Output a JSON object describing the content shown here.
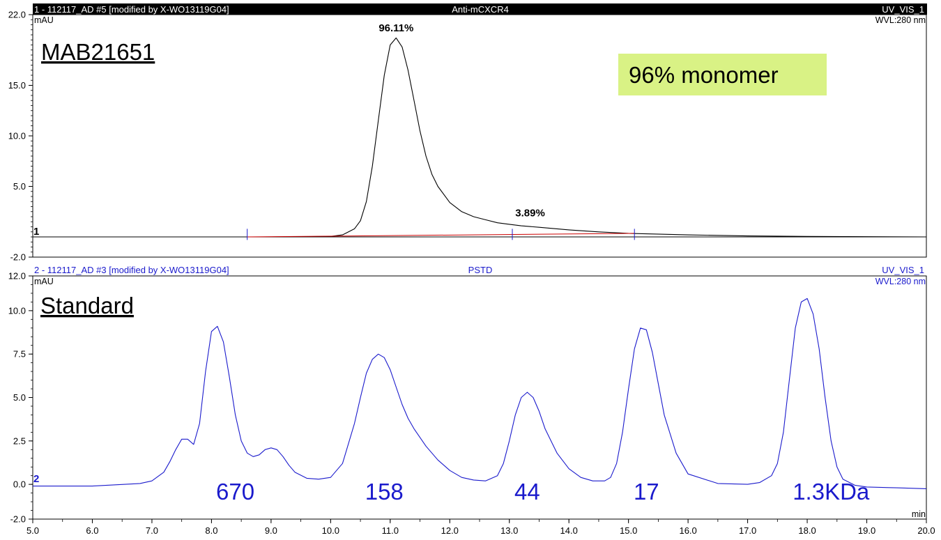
{
  "chart_data": [
    {
      "type": "line",
      "header": {
        "left": "1 - 112117_AD #5 [modified by X-WO13119G04]",
        "center": "Anti-mCXCR4",
        "right": "UV_VIS_1"
      },
      "ylabel": "mAU",
      "wavelength": "WVL:280 nm",
      "trace_number": "1",
      "sample_label": "MAB21651",
      "annotation_box": "96% monomer",
      "annotation_box_color": "#d9f285",
      "ylim": [
        -2.0,
        22.0
      ],
      "yticks": [
        "22.0",
        "15.0",
        "10.0",
        "5.0",
        "-2.0"
      ],
      "ytick_values": [
        22.0,
        15.0,
        10.0,
        5.0,
        -2.0
      ],
      "xlim": [
        5.0,
        20.0
      ],
      "line_color": "#000000",
      "baseline_color": "#cc0000",
      "peak_labels": [
        {
          "text": "96.11%",
          "x": 11.1,
          "y": 19.8
        },
        {
          "text": "3.89%",
          "x": 13.1,
          "y": 1.5
        }
      ],
      "integration_marks": [
        8.6,
        13.05,
        15.1
      ],
      "x": [
        5.0,
        8.0,
        9.0,
        10.0,
        10.2,
        10.4,
        10.5,
        10.6,
        10.7,
        10.8,
        10.9,
        11.0,
        11.1,
        11.2,
        11.3,
        11.4,
        11.5,
        11.6,
        11.7,
        11.8,
        12.0,
        12.2,
        12.4,
        12.6,
        12.8,
        13.0,
        13.2,
        13.5,
        14.0,
        14.5,
        15.0,
        16.0,
        17.0,
        18.0,
        19.0,
        20.0
      ],
      "y": [
        0.0,
        0.0,
        0.0,
        0.05,
        0.2,
        0.8,
        1.6,
        3.5,
        7.0,
        11.5,
        16.0,
        19.0,
        19.7,
        18.8,
        16.5,
        13.5,
        10.5,
        8.0,
        6.2,
        5.0,
        3.4,
        2.5,
        2.0,
        1.7,
        1.4,
        1.25,
        1.1,
        0.95,
        0.7,
        0.5,
        0.35,
        0.2,
        0.1,
        0.05,
        0.02,
        0.0
      ]
    },
    {
      "type": "line",
      "header": {
        "left": "2 - 112117_AD #3 [modified by X-WO13119G04]",
        "center": "PSTD",
        "right": "UV_VIS_1"
      },
      "ylabel": "mAU",
      "wavelength": "WVL:280 nm",
      "trace_number": "2",
      "sample_label": "Standard",
      "ylim": [
        -2.0,
        12.0
      ],
      "yticks": [
        "12.0",
        "10.0",
        "7.5",
        "5.0",
        "2.5",
        "0.0",
        "-2.0"
      ],
      "ytick_values": [
        12.0,
        10.0,
        7.5,
        5.0,
        2.5,
        0.0,
        -2.0
      ],
      "xlim": [
        5.0,
        20.0
      ],
      "xlabel": "min",
      "xticks": [
        "5.0",
        "6.0",
        "7.0",
        "8.0",
        "9.0",
        "10.0",
        "11.0",
        "12.0",
        "13.0",
        "14.0",
        "15.0",
        "16.0",
        "17.0",
        "18.0",
        "19.0",
        "20.0"
      ],
      "xtick_values": [
        5.0,
        6.0,
        7.0,
        8.0,
        9.0,
        10.0,
        11.0,
        12.0,
        13.0,
        14.0,
        15.0,
        16.0,
        17.0,
        18.0,
        19.0,
        20.0
      ],
      "line_color": "#1a1acc",
      "size_labels": [
        {
          "text": "670",
          "x": 8.4
        },
        {
          "text": "158",
          "x": 10.9
        },
        {
          "text": "44",
          "x": 13.3
        },
        {
          "text": "17",
          "x": 15.3
        },
        {
          "text": "1.3KDa",
          "x": 18.4
        }
      ],
      "label_color": "#1a1acc",
      "x": [
        5.0,
        6.0,
        6.8,
        7.0,
        7.2,
        7.3,
        7.4,
        7.5,
        7.6,
        7.7,
        7.8,
        7.9,
        8.0,
        8.1,
        8.2,
        8.3,
        8.4,
        8.5,
        8.6,
        8.7,
        8.8,
        8.9,
        9.0,
        9.1,
        9.2,
        9.3,
        9.4,
        9.6,
        9.8,
        10.0,
        10.2,
        10.4,
        10.5,
        10.6,
        10.7,
        10.8,
        10.9,
        11.0,
        11.1,
        11.2,
        11.3,
        11.4,
        11.6,
        11.8,
        12.0,
        12.2,
        12.4,
        12.6,
        12.8,
        12.9,
        13.0,
        13.1,
        13.2,
        13.3,
        13.4,
        13.5,
        13.6,
        13.8,
        14.0,
        14.2,
        14.4,
        14.6,
        14.7,
        14.8,
        14.9,
        15.0,
        15.1,
        15.2,
        15.3,
        15.4,
        15.5,
        15.6,
        15.8,
        16.0,
        16.5,
        17.0,
        17.2,
        17.4,
        17.5,
        17.6,
        17.7,
        17.8,
        17.9,
        18.0,
        18.1,
        18.2,
        18.3,
        18.4,
        18.5,
        18.6,
        18.8,
        19.0,
        19.5,
        20.0
      ],
      "y": [
        -0.1,
        -0.1,
        0.05,
        0.2,
        0.7,
        1.3,
        2.0,
        2.6,
        2.6,
        2.3,
        3.5,
        6.5,
        8.8,
        9.1,
        8.2,
        6.2,
        4.0,
        2.5,
        1.8,
        1.6,
        1.7,
        2.0,
        2.1,
        2.0,
        1.6,
        1.1,
        0.7,
        0.35,
        0.3,
        0.4,
        1.2,
        3.5,
        5.0,
        6.4,
        7.2,
        7.5,
        7.3,
        6.6,
        5.6,
        4.6,
        3.8,
        3.2,
        2.2,
        1.4,
        0.8,
        0.4,
        0.25,
        0.2,
        0.5,
        1.2,
        2.5,
        4.0,
        5.0,
        5.3,
        5.0,
        4.2,
        3.2,
        1.8,
        0.9,
        0.4,
        0.2,
        0.2,
        0.4,
        1.2,
        3.0,
        5.5,
        7.8,
        9.0,
        8.9,
        7.6,
        5.8,
        4.0,
        1.8,
        0.6,
        0.05,
        0.0,
        0.1,
        0.5,
        1.2,
        3.0,
        6.0,
        9.0,
        10.5,
        10.7,
        9.8,
        7.8,
        5.0,
        2.5,
        1.0,
        0.3,
        -0.05,
        -0.15,
        -0.2,
        -0.25
      ]
    }
  ]
}
